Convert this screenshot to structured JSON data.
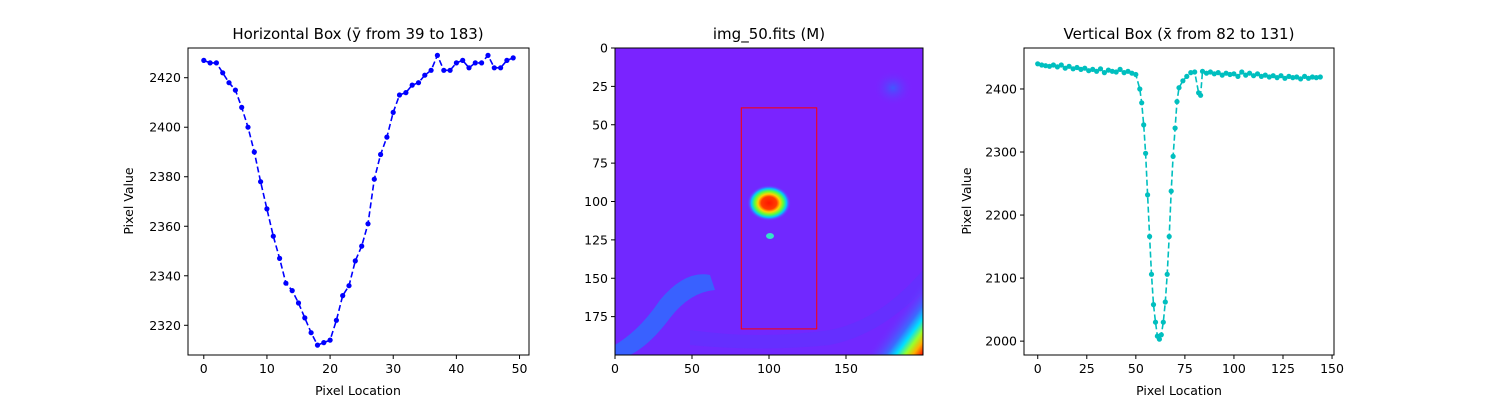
{
  "chart_data": [
    {
      "type": "line",
      "title": "Horizontal Box (ȳ from 39 to 183)",
      "xlabel": "Pixel Location",
      "ylabel": "Pixel Value",
      "xlim": [
        -2.5,
        51.5
      ],
      "ylim": [
        2308,
        2432
      ],
      "xticks": [
        0,
        10,
        20,
        30,
        40,
        50
      ],
      "yticks": [
        2320,
        2340,
        2360,
        2380,
        2400,
        2420
      ],
      "color": "#0000ff",
      "linestyle": "dashed",
      "marker": "circle",
      "grid": false,
      "series": [
        {
          "x": [
            0,
            1,
            2,
            3,
            4,
            5,
            6,
            7,
            8,
            9,
            10,
            11,
            12,
            13,
            14,
            15,
            16,
            17,
            18,
            19,
            20,
            21,
            22,
            23,
            24,
            25,
            26,
            27,
            28,
            29,
            30,
            31,
            32,
            33,
            34,
            35,
            36,
            37,
            38,
            39,
            40,
            41,
            42,
            43,
            44,
            45,
            46,
            47,
            48,
            49
          ],
          "y": [
            2427,
            2426,
            2426,
            2422,
            2418,
            2415,
            2408,
            2400,
            2390,
            2378,
            2367,
            2356,
            2347,
            2337,
            2334,
            2329,
            2323,
            2317,
            2312,
            2313,
            2314,
            2322,
            2332,
            2336,
            2346,
            2352,
            2361,
            2379,
            2389,
            2396,
            2406,
            2413,
            2414,
            2417,
            2418,
            2421,
            2423,
            2429,
            2423,
            2423,
            2426,
            2427,
            2424,
            2426,
            2426,
            2429,
            2424,
            2424,
            2427,
            2428
          ]
        }
      ]
    },
    {
      "type": "heatmap",
      "title": "img_50.fits (M)",
      "xlim": [
        0,
        200
      ],
      "ylim": [
        200,
        0
      ],
      "xticks": [
        0,
        50,
        100,
        150
      ],
      "yticks": [
        0,
        25,
        50,
        75,
        100,
        125,
        150,
        175
      ],
      "colormap": "rainbow",
      "background_color": "#7a23ff",
      "box": {
        "x0": 82,
        "x1": 131,
        "y0": 39,
        "y1": 183,
        "color": "#ff0000"
      },
      "features": [
        {
          "kind": "source",
          "x": 100,
          "y": 100
        },
        {
          "kind": "source",
          "x": 101,
          "y": 122
        }
      ]
    },
    {
      "type": "line",
      "title": "Vertical Box (x̄ from 82 to 131)",
      "xlabel": "Pixel Location",
      "ylabel": "Pixel Value",
      "xlim": [
        -7,
        151
      ],
      "ylim": [
        1978,
        2465
      ],
      "xticks": [
        0,
        25,
        50,
        75,
        100,
        125,
        150
      ],
      "yticks": [
        2000,
        2100,
        2200,
        2300,
        2400
      ],
      "color": "#00bfbf",
      "linestyle": "dashed",
      "marker": "circle",
      "grid": false,
      "series": [
        {
          "x": [
            0,
            2,
            4,
            6,
            8,
            10,
            12,
            14,
            16,
            18,
            20,
            22,
            24,
            26,
            28,
            30,
            32,
            34,
            36,
            38,
            40,
            42,
            44,
            46,
            48,
            50,
            52,
            53,
            54,
            55,
            56,
            57,
            58,
            59,
            60,
            61,
            62,
            63,
            64,
            65,
            66,
            67,
            68,
            69,
            70,
            71,
            72,
            74,
            76,
            78,
            80,
            82,
            83,
            84,
            86,
            88,
            90,
            92,
            94,
            96,
            98,
            100,
            102,
            104,
            106,
            108,
            110,
            112,
            114,
            116,
            118,
            120,
            122,
            124,
            126,
            128,
            130,
            132,
            134,
            136,
            138,
            140,
            142,
            144
          ],
          "y": [
            2440,
            2438,
            2437,
            2436,
            2438,
            2435,
            2438,
            2433,
            2436,
            2432,
            2434,
            2431,
            2433,
            2429,
            2431,
            2428,
            2432,
            2426,
            2430,
            2428,
            2427,
            2431,
            2426,
            2428,
            2425,
            2423,
            2400,
            2378,
            2343,
            2298,
            2232,
            2166,
            2106,
            2058,
            2030,
            2008,
            2003,
            2010,
            2030,
            2062,
            2106,
            2166,
            2238,
            2293,
            2338,
            2380,
            2402,
            2413,
            2420,
            2426,
            2427,
            2394,
            2390,
            2428,
            2425,
            2427,
            2424,
            2426,
            2422,
            2425,
            2423,
            2424,
            2420,
            2427,
            2422,
            2425,
            2421,
            2424,
            2420,
            2422,
            2419,
            2421,
            2418,
            2421,
            2417,
            2420,
            2418,
            2419,
            2416,
            2420,
            2417,
            2419,
            2418,
            2419
          ]
        }
      ]
    }
  ]
}
